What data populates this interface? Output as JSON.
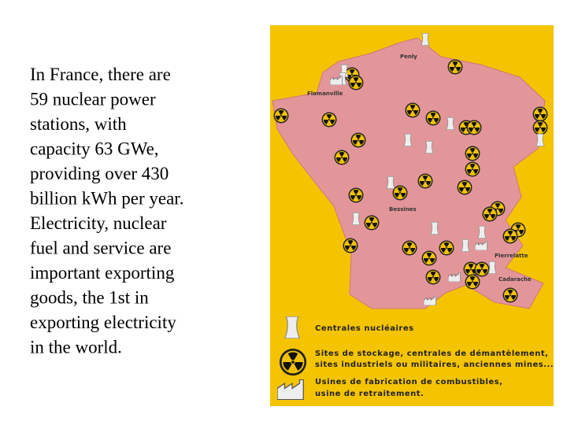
{
  "text": {
    "lines": [
      "In France, there are",
      "59 nuclear power",
      "stations, with",
      "capacity 63 GWe,",
      "providing over 430",
      "billion kWh per year.",
      "Electricity, nuclear",
      "fuel and service are",
      "important exporting",
      "goods, the 1st in",
      "exporting electricity",
      "in the world."
    ]
  },
  "map": {
    "places": [
      "Flamanville",
      "Penly",
      "Bessines",
      "Pierrelatte",
      "Cadarache"
    ],
    "legend": {
      "reactors": "Centrales nucléaires",
      "sites": [
        "Sites de stockage, centrales de démantèlement,",
        "sites industriels ou militaires, anciennes mines..."
      ],
      "plants": [
        "Usines de fabrication de combustibles,",
        "usine de retraitement."
      ]
    }
  }
}
